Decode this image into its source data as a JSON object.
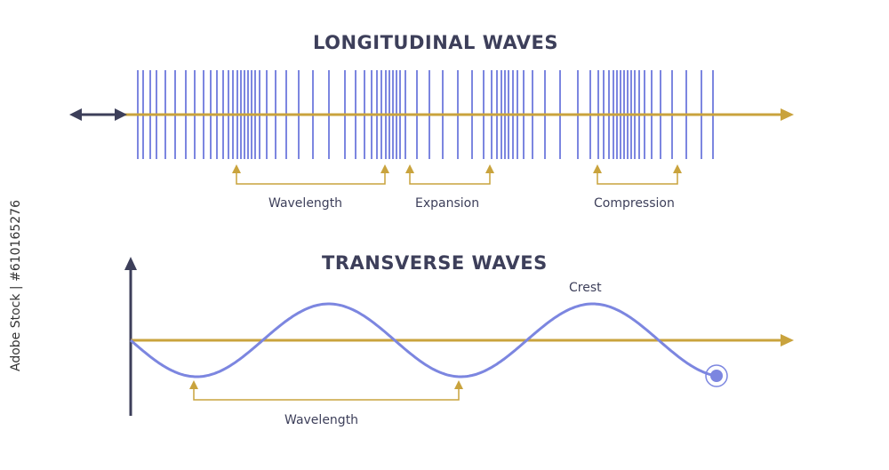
{
  "longitudinal": {
    "title": "LONGITUDINAL WAVES",
    "labels": {
      "wavelength": "Wavelength",
      "expansion": "Expansion",
      "compression": "Compression"
    }
  },
  "transverse": {
    "title": "TRANSVERSE WAVES",
    "labels": {
      "crest": "Crest",
      "wavelength": "Wavelength"
    }
  },
  "watermark": "Adobe Stock | #610165276",
  "colors": {
    "wave": "#7c86e0",
    "axis": "#c9a33d",
    "dark": "#3d3f5a"
  }
}
